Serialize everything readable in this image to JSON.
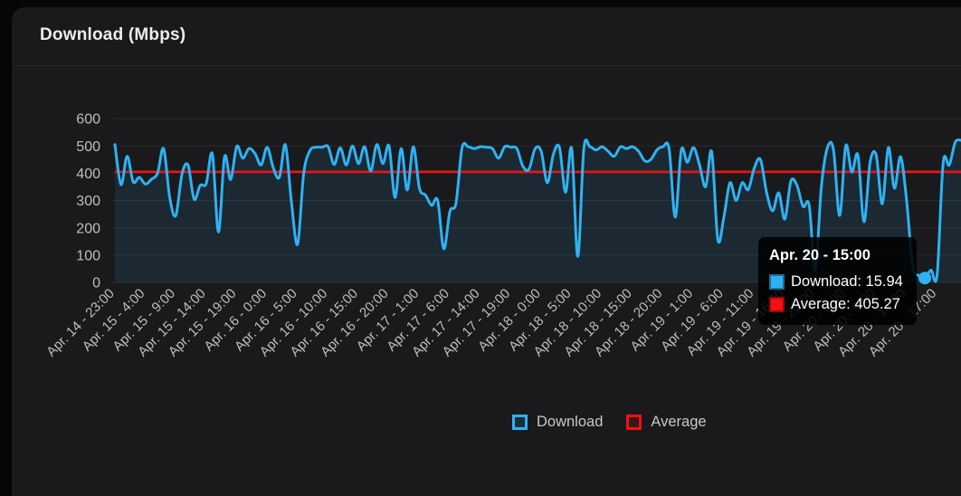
{
  "card": {
    "title": "Download (Mbps)"
  },
  "colors": {
    "page_bg": "#060607",
    "card_bg": "#1a1a1c",
    "divider": "#2b2b2e",
    "title_text": "#ededee",
    "axis_text": "#bdbec1",
    "grid": "rgba(255,255,255,0.08)",
    "download_blue": "#2eb2f4",
    "average_red": "#f50f0f",
    "area_fill": "rgba(46,178,244,0.10)",
    "legend_text": "#c6c7c9",
    "tooltip_bg": "rgba(0,0,0,0.88)"
  },
  "chart_data": {
    "type": "line",
    "title": "Download (Mbps)",
    "xlabel": "",
    "ylabel": "",
    "ylim": [
      0,
      600
    ],
    "y_ticks": [
      0,
      100,
      200,
      300,
      400,
      500,
      600
    ],
    "grid": "horizontal",
    "legend_position": "bottom",
    "x_tick_interval": 5,
    "x_tick_labels": [
      "Apr. 14 - 23:00",
      "Apr. 15 - 4:00",
      "Apr. 15 - 9:00",
      "Apr. 15 - 14:00",
      "Apr. 15 - 19:00",
      "Apr. 16 - 0:00",
      "Apr. 16 - 5:00",
      "Apr. 16 - 10:00",
      "Apr. 16 - 15:00",
      "Apr. 16 - 20:00",
      "Apr. 17 - 1:00",
      "Apr. 17 - 6:00",
      "Apr. 17 - 14:00",
      "Apr. 17 - 19:00",
      "Apr. 18 - 0:00",
      "Apr. 18 - 5:00",
      "Apr. 18 - 10:00",
      "Apr. 18 - 15:00",
      "Apr. 18 - 20:00",
      "Apr. 19 - 1:00",
      "Apr. 19 - 6:00",
      "Apr. 19 - 11:00",
      "Apr. 19 - 16:00",
      "Apr. 19 - 21:00",
      "Apr. 20 - 2:00",
      "Apr. 20 - 9:00",
      "Apr. 20 - 14:00",
      "Apr. 20 - 17:00"
    ],
    "series": [
      {
        "name": "Download",
        "color": "#2eb2f4",
        "fill": true,
        "values": [
          505,
          358,
          462,
          368,
          385,
          360,
          378,
          400,
          490,
          310,
          245,
          395,
          430,
          305,
          355,
          362,
          470,
          185,
          460,
          377,
          498,
          455,
          490,
          472,
          430,
          495,
          420,
          385,
          504,
          290,
          140,
          399,
          482,
          495,
          495,
          497,
          432,
          493,
          430,
          500,
          435,
          497,
          408,
          505,
          435,
          500,
          311,
          490,
          338,
          497,
          345,
          320,
          282,
          300,
          123,
          260,
          290,
          493,
          497,
          490,
          497,
          495,
          490,
          455,
          497,
          495,
          490,
          425,
          415,
          490,
          480,
          365,
          470,
          494,
          330,
          490,
          95,
          490,
          497,
          485,
          497,
          480,
          462,
          497,
          490,
          497,
          480,
          445,
          450,
          485,
          497,
          490,
          239,
          485,
          440,
          494,
          430,
          350,
          478,
          156,
          240,
          365,
          300,
          365,
          340,
          420,
          450,
          330,
          262,
          328,
          232,
          371,
          355,
          278,
          283,
          45,
          350,
          494,
          485,
          245,
          500,
          404,
          466,
          222,
          440,
          466,
          288,
          494,
          345,
          460,
          300,
          60,
          25,
          15.94,
          45,
          28,
          437,
          430,
          514,
          520
        ]
      },
      {
        "name": "Average",
        "color": "#f50f0f",
        "style": "horizontal-line",
        "value": 405.27
      }
    ],
    "highlighted_point": {
      "series": "Download",
      "index": 133,
      "label": "Apr. 20 - 15:00",
      "download_value": 15.94,
      "average_value": 405.27
    }
  },
  "tooltip": {
    "title": "Apr. 20 - 15:00",
    "rows": [
      {
        "text": "Download: 15.94",
        "color": "#2eb2f4"
      },
      {
        "text": "Average: 405.27",
        "color": "#f50f0f"
      }
    ]
  },
  "legend": {
    "items": [
      {
        "label": "Download",
        "color": "#2eb2f4"
      },
      {
        "label": "Average",
        "color": "#f50f0f"
      }
    ]
  }
}
